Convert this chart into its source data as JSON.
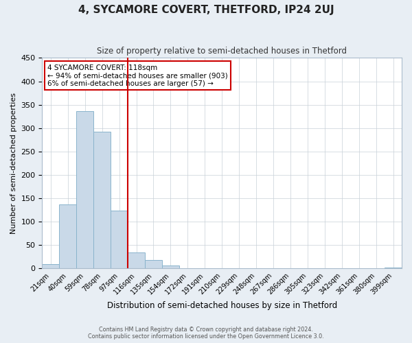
{
  "title": "4, SYCAMORE COVERT, THETFORD, IP24 2UJ",
  "subtitle": "Size of property relative to semi-detached houses in Thetford",
  "xlabel": "Distribution of semi-detached houses by size in Thetford",
  "ylabel": "Number of semi-detached properties",
  "bin_labels": [
    "21sqm",
    "40sqm",
    "59sqm",
    "78sqm",
    "97sqm",
    "116sqm",
    "135sqm",
    "154sqm",
    "172sqm",
    "191sqm",
    "210sqm",
    "229sqm",
    "248sqm",
    "267sqm",
    "286sqm",
    "305sqm",
    "323sqm",
    "342sqm",
    "361sqm",
    "380sqm",
    "399sqm"
  ],
  "bar_heights": [
    10,
    137,
    337,
    293,
    123,
    35,
    18,
    6,
    0,
    0,
    0,
    0,
    0,
    0,
    0,
    0,
    0,
    0,
    0,
    0,
    2
  ],
  "bar_color": "#c9d9e8",
  "bar_edgecolor": "#8ab4cc",
  "vline_index": 5,
  "vline_color": "#cc0000",
  "annotation_title": "4 SYCAMORE COVERT: 118sqm",
  "annotation_line1": "← 94% of semi-detached houses are smaller (903)",
  "annotation_line2": "6% of semi-detached houses are larger (57) →",
  "annotation_box_color": "#cc0000",
  "ylim": [
    0,
    450
  ],
  "yticks": [
    0,
    50,
    100,
    150,
    200,
    250,
    300,
    350,
    400,
    450
  ],
  "footer1": "Contains HM Land Registry data © Crown copyright and database right 2024.",
  "footer2": "Contains public sector information licensed under the Open Government Licence 3.0.",
  "bg_color": "#e8eef4",
  "plot_bg_color": "#ffffff",
  "grid_color": "#c8d0d8"
}
